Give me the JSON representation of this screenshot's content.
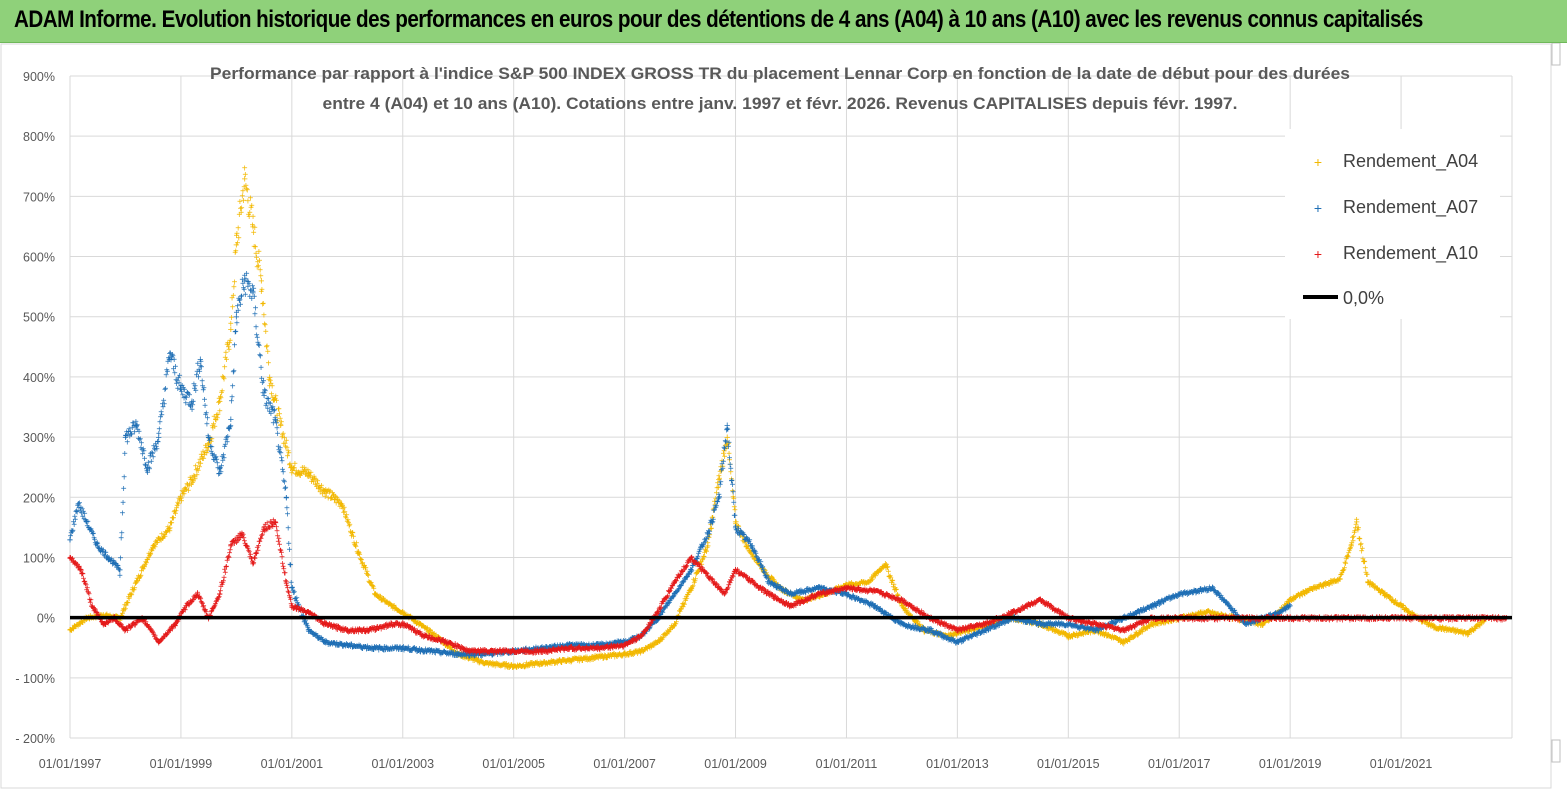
{
  "banner": {
    "title": "ADAM Informe. Evolution historique des performances en euros pour des détentions de 4 ans (A04) à 10 ans (A10) avec les revenus connus capitalisés"
  },
  "chart_data": {
    "type": "scatter",
    "title_line1": "Performance par rapport à l'indice S&P 500 INDEX GROSS TR  du placement Lennar Corp en fonction de la date de début pour des durées",
    "title_line2": "entre 4 (A04) et 10 ans (A10). Cotations entre janv. 1997 et févr. 2026. Revenus CAPITALISES depuis févr. 1997.",
    "xlabel": "",
    "ylabel": "",
    "xlim": [
      1997.0,
      2023.0
    ],
    "ylim": [
      -200,
      900
    ],
    "y_ticks": [
      900,
      800,
      700,
      600,
      500,
      400,
      300,
      200,
      100,
      0,
      -100,
      -200
    ],
    "y_tick_labels": [
      "900%",
      "800%",
      "700%",
      "600%",
      "500%",
      "400%",
      "300%",
      "200%",
      "100%",
      "0%",
      "- 100%",
      "- 200%"
    ],
    "x_ticks": [
      1997,
      1999,
      2001,
      2003,
      2005,
      2007,
      2009,
      2011,
      2013,
      2015,
      2017,
      2019,
      2021
    ],
    "x_tick_labels": [
      "01/01/1997",
      "01/01/1999",
      "01/01/2001",
      "01/01/2003",
      "01/01/2005",
      "01/01/2007",
      "01/01/2009",
      "01/01/2011",
      "01/01/2013",
      "01/01/2015",
      "01/01/2017",
      "01/01/2019",
      "01/01/2021"
    ],
    "grid": true,
    "legend_position": "top-right",
    "series": [
      {
        "name": "Rendement_A04",
        "color": "#f2b800",
        "x": [
          1997.0,
          1997.3,
          1997.6,
          1997.9,
          1998.2,
          1998.5,
          1998.8,
          1999.0,
          1999.2,
          1999.5,
          1999.7,
          1999.9,
          2000.0,
          2000.15,
          2000.3,
          2000.45,
          2000.6,
          2000.8,
          2001.0,
          2001.3,
          2001.6,
          2001.9,
          2002.2,
          2002.5,
          2002.8,
          2003.0,
          2003.3,
          2003.6,
          2004.0,
          2004.5,
          2005.0,
          2005.5,
          2006.0,
          2006.5,
          2007.0,
          2007.3,
          2007.6,
          2007.9,
          2008.2,
          2008.5,
          2008.7,
          2008.85,
          2009.0,
          2009.2,
          2009.5,
          2009.8,
          2010.2,
          2010.6,
          2011.0,
          2011.4,
          2011.7,
          2012.0,
          2012.4,
          2012.8,
          2013.2,
          2013.6,
          2014.0,
          2014.5,
          2015.0,
          2015.5,
          2016.0,
          2016.5,
          2017.0,
          2017.5,
          2018.0,
          2018.5,
          2018.8,
          2019.0,
          2019.3,
          2019.6,
          2019.9,
          2020.1,
          2020.2,
          2020.4,
          2020.7,
          2021.0,
          2021.3,
          2021.6,
          2021.9,
          2022.2,
          2022.5
        ],
        "values": [
          -20,
          0,
          5,
          0,
          60,
          120,
          150,
          200,
          230,
          290,
          360,
          480,
          620,
          730,
          650,
          560,
          400,
          320,
          250,
          240,
          210,
          190,
          110,
          40,
          20,
          10,
          -10,
          -30,
          -60,
          -75,
          -80,
          -75,
          -70,
          -65,
          -60,
          -55,
          -40,
          -10,
          50,
          120,
          230,
          300,
          160,
          120,
          80,
          50,
          30,
          40,
          55,
          60,
          90,
          20,
          -20,
          -30,
          -20,
          -10,
          0,
          -10,
          -30,
          -20,
          -40,
          -10,
          0,
          10,
          0,
          -10,
          10,
          30,
          45,
          55,
          65,
          120,
          160,
          60,
          40,
          20,
          0,
          -15,
          -20,
          -25,
          -5
        ]
      },
      {
        "name": "Rendement_A07",
        "color": "#1f6fb5",
        "x": [
          1997.0,
          1997.15,
          1997.3,
          1997.5,
          1997.7,
          1997.9,
          1998.0,
          1998.2,
          1998.4,
          1998.6,
          1998.8,
          1999.0,
          1999.2,
          1999.35,
          1999.5,
          1999.7,
          1999.9,
          2000.0,
          2000.15,
          2000.3,
          2000.5,
          2000.7,
          2000.9,
          2001.0,
          2001.3,
          2001.6,
          2002.0,
          2002.5,
          2003.0,
          2003.5,
          2004.0,
          2004.5,
          2005.0,
          2005.5,
          2006.0,
          2006.5,
          2007.0,
          2007.3,
          2007.6,
          2007.9,
          2008.2,
          2008.5,
          2008.7,
          2008.85,
          2009.0,
          2009.3,
          2009.6,
          2010.0,
          2010.5,
          2011.0,
          2011.5,
          2012.0,
          2012.5,
          2013.0,
          2013.5,
          2014.0,
          2014.5,
          2015.0,
          2015.5,
          2016.0,
          2016.5,
          2017.0,
          2017.3,
          2017.6,
          2017.9,
          2018.2,
          2018.5,
          2018.8,
          2019.0
        ],
        "values": [
          130,
          190,
          160,
          120,
          100,
          80,
          300,
          320,
          250,
          300,
          440,
          380,
          360,
          430,
          300,
          240,
          330,
          500,
          560,
          540,
          370,
          330,
          200,
          50,
          -20,
          -40,
          -45,
          -50,
          -50,
          -55,
          -60,
          -60,
          -55,
          -50,
          -45,
          -45,
          -40,
          -30,
          0,
          40,
          80,
          140,
          200,
          320,
          150,
          120,
          60,
          40,
          50,
          40,
          20,
          -10,
          -20,
          -40,
          -20,
          0,
          -10,
          -10,
          -20,
          0,
          20,
          40,
          45,
          50,
          20,
          -10,
          0,
          10,
          20
        ]
      },
      {
        "name": "Rendement_A10",
        "color": "#e41a1a",
        "x": [
          1997.0,
          1997.2,
          1997.4,
          1997.6,
          1997.8,
          1998.0,
          1998.3,
          1998.6,
          1998.9,
          1999.1,
          1999.3,
          1999.5,
          1999.7,
          1999.9,
          2000.1,
          2000.3,
          2000.5,
          2000.7,
          2000.9,
          2001.0,
          2001.3,
          2001.6,
          2002.0,
          2002.4,
          2002.8,
          2003.0,
          2003.4,
          2003.8,
          2004.2,
          2004.6,
          2005.0,
          2005.5,
          2006.0,
          2006.5,
          2007.0,
          2007.3,
          2007.6,
          2007.9,
          2008.2,
          2008.5,
          2008.8,
          2009.0,
          2009.3,
          2009.6,
          2010.0,
          2010.5,
          2011.0,
          2011.5,
          2012.0,
          2012.5,
          2013.0,
          2013.5,
          2014.0,
          2014.5,
          2015.0,
          2015.5,
          2016.0,
          2016.5,
          2017.0,
          2018.0,
          2019.0,
          2020.0,
          2021.0,
          2022.0,
          2022.9
        ],
        "values": [
          100,
          80,
          20,
          -10,
          0,
          -20,
          0,
          -40,
          -10,
          20,
          40,
          0,
          40,
          120,
          140,
          90,
          150,
          160,
          60,
          20,
          10,
          -10,
          -20,
          -20,
          -10,
          -10,
          -30,
          -40,
          -55,
          -55,
          -55,
          -55,
          -50,
          -50,
          -45,
          -30,
          10,
          60,
          100,
          70,
          40,
          80,
          60,
          40,
          20,
          40,
          50,
          45,
          30,
          0,
          -20,
          -10,
          10,
          30,
          0,
          -10,
          -20,
          0,
          0,
          0,
          0,
          0,
          0,
          0,
          0
        ]
      }
    ],
    "reference_line": {
      "name": "0,0%",
      "value": 0,
      "color": "#000000"
    }
  }
}
